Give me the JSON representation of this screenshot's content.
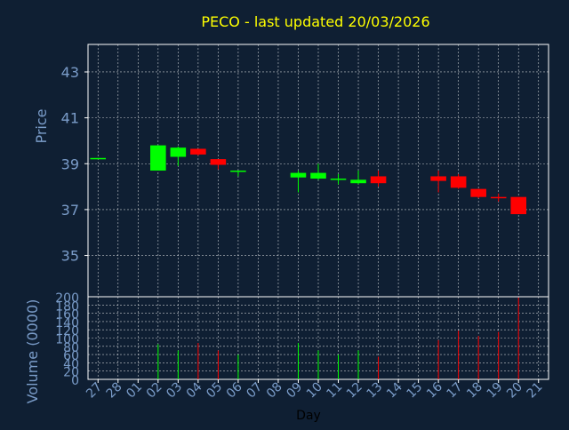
{
  "title": "PECO - last updated 20/03/2026",
  "colors": {
    "background": "#0f1f33",
    "title": "#ffff00",
    "axis": "#ffffff",
    "label": "#7a9cc9",
    "grid": "#ffffff",
    "up": "#00ff00",
    "down": "#ff0000"
  },
  "chart_data": [
    {
      "type": "candlestick",
      "ylabel": "Price",
      "ylim": [
        33.2,
        44.2
      ],
      "yticks": [
        35,
        37,
        39,
        41,
        43
      ],
      "grid": true,
      "categories": [
        "27",
        "28",
        "01",
        "02",
        "03",
        "04",
        "05",
        "06",
        "07",
        "08",
        "09",
        "10",
        "11",
        "12",
        "13",
        "14",
        "15",
        "16",
        "17",
        "18",
        "19",
        "20",
        "21"
      ],
      "candles": [
        {
          "day": "27",
          "open": 39.25,
          "high": 39.25,
          "low": 39.2,
          "close": 39.25
        },
        {
          "day": "02",
          "open": 38.7,
          "high": 39.8,
          "low": 38.7,
          "close": 39.8
        },
        {
          "day": "03",
          "open": 39.3,
          "high": 39.75,
          "low": 38.9,
          "close": 39.7
        },
        {
          "day": "04",
          "open": 39.65,
          "high": 39.65,
          "low": 39.35,
          "close": 39.4
        },
        {
          "day": "05",
          "open": 39.2,
          "high": 39.2,
          "low": 38.75,
          "close": 38.95
        },
        {
          "day": "06",
          "open": 38.65,
          "high": 38.7,
          "low": 38.45,
          "close": 38.7
        },
        {
          "day": "09",
          "open": 38.4,
          "high": 38.7,
          "low": 37.75,
          "close": 38.6
        },
        {
          "day": "10",
          "open": 38.35,
          "high": 39.0,
          "low": 38.3,
          "close": 38.6
        },
        {
          "day": "11",
          "open": 38.35,
          "high": 38.55,
          "low": 38.1,
          "close": 38.35
        },
        {
          "day": "12",
          "open": 38.15,
          "high": 38.7,
          "low": 38.1,
          "close": 38.3
        },
        {
          "day": "13",
          "open": 38.45,
          "high": 38.7,
          "low": 38.0,
          "close": 38.15
        },
        {
          "day": "16",
          "open": 38.45,
          "high": 38.7,
          "low": 37.75,
          "close": 38.25
        },
        {
          "day": "17",
          "open": 38.45,
          "high": 38.55,
          "low": 37.9,
          "close": 37.95
        },
        {
          "day": "18",
          "open": 37.9,
          "high": 37.9,
          "low": 37.5,
          "close": 37.55
        },
        {
          "day": "19",
          "open": 37.55,
          "high": 37.7,
          "low": 37.35,
          "close": 37.5
        },
        {
          "day": "20",
          "open": 37.55,
          "high": 37.55,
          "low": 36.8,
          "close": 36.8
        }
      ]
    },
    {
      "type": "bar",
      "xlabel": "Day",
      "ylabel": "Volume (0000)",
      "ylim": [
        0,
        200
      ],
      "yticks": [
        0,
        20,
        40,
        60,
        80,
        100,
        120,
        140,
        160,
        180,
        200
      ],
      "grid": true,
      "bars": [
        {
          "day": "02",
          "value": 85,
          "direction": "up"
        },
        {
          "day": "03",
          "value": 70,
          "direction": "up"
        },
        {
          "day": "04",
          "value": 88,
          "direction": "down"
        },
        {
          "day": "05",
          "value": 70,
          "direction": "down"
        },
        {
          "day": "06",
          "value": 60,
          "direction": "up"
        },
        {
          "day": "09",
          "value": 88,
          "direction": "up"
        },
        {
          "day": "10",
          "value": 70,
          "direction": "up"
        },
        {
          "day": "11",
          "value": 60,
          "direction": "up"
        },
        {
          "day": "12",
          "value": 70,
          "direction": "up"
        },
        {
          "day": "13",
          "value": 55,
          "direction": "down"
        },
        {
          "day": "16",
          "value": 95,
          "direction": "down"
        },
        {
          "day": "17",
          "value": 118,
          "direction": "down"
        },
        {
          "day": "18",
          "value": 105,
          "direction": "down"
        },
        {
          "day": "19",
          "value": 115,
          "direction": "down"
        },
        {
          "day": "20",
          "value": 198,
          "direction": "down"
        }
      ]
    }
  ]
}
